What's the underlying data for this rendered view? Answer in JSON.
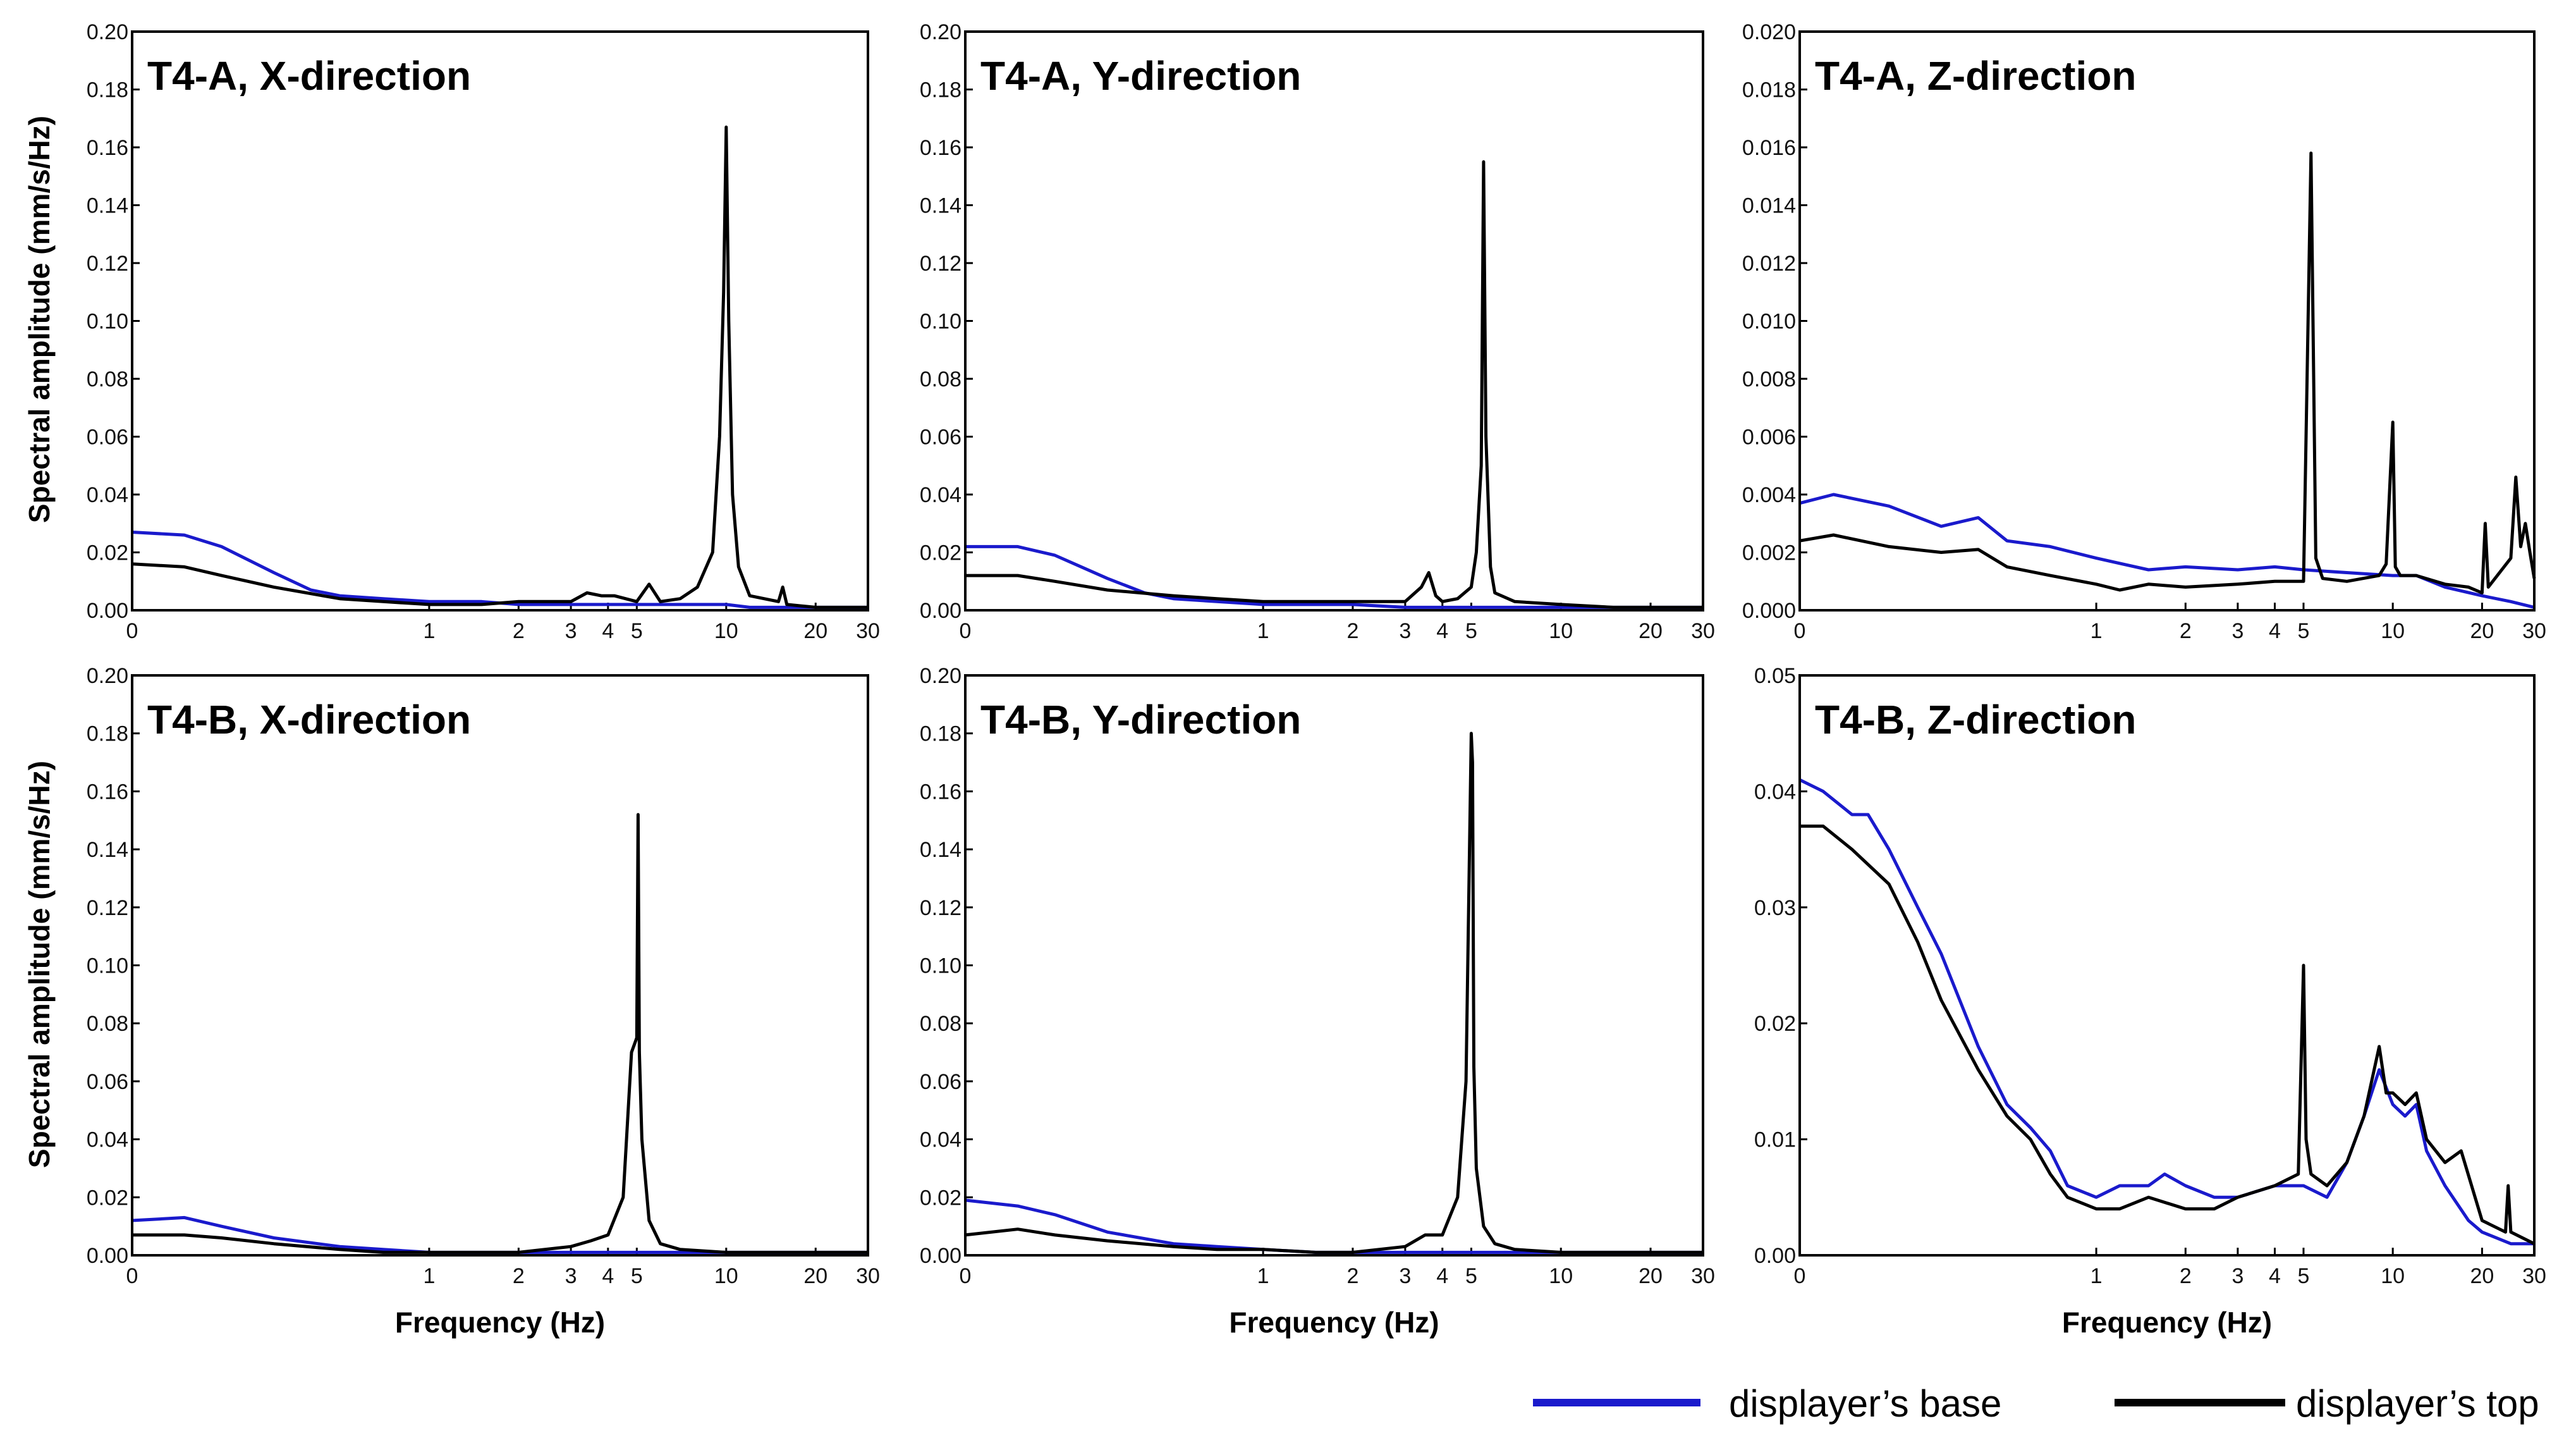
{
  "figure": {
    "ylabel": "Spectral amplitude (mm/s/Hz)",
    "xlabel": "Frequency (Hz)",
    "legend": [
      {
        "label": "displayer’s base",
        "color": "#1a1acc"
      },
      {
        "label": "displayer’s top",
        "color": "#000000"
      }
    ],
    "colors": {
      "base": "#1a1acc",
      "top": "#000000",
      "axis": "#000000"
    }
  },
  "chart_data": [
    {
      "type": "line",
      "title": "T4-A, X-direction",
      "xlabel": "",
      "ylabel": "Spectral amplitude (mm/s/Hz)",
      "x_scale": "log",
      "xlim": [
        0.1,
        30
      ],
      "x_ticks": [
        {
          "v": 0.1,
          "l": "0"
        },
        {
          "v": 1,
          "l": "1"
        },
        {
          "v": 2,
          "l": "2"
        },
        {
          "v": 3,
          "l": "3"
        },
        {
          "v": 4,
          "l": "4"
        },
        {
          "v": 5,
          "l": "5"
        },
        {
          "v": 10,
          "l": "10"
        },
        {
          "v": 20,
          "l": "20"
        },
        {
          "v": 30,
          "l": "30"
        }
      ],
      "ylim": [
        0,
        0.2
      ],
      "y_ticks": [
        "0.00",
        "0.02",
        "0.04",
        "0.06",
        "0.08",
        "0.10",
        "0.12",
        "0.14",
        "0.16",
        "0.18",
        "0.20"
      ],
      "series": [
        {
          "name": "displayer’s base",
          "color": "#1a1acc",
          "x": [
            0.1,
            0.15,
            0.2,
            0.3,
            0.4,
            0.5,
            0.7,
            1,
            1.5,
            2,
            3,
            4,
            5,
            7,
            9,
            10,
            12,
            15,
            20,
            30
          ],
          "y": [
            0.027,
            0.026,
            0.022,
            0.013,
            0.007,
            0.005,
            0.004,
            0.003,
            0.003,
            0.002,
            0.002,
            0.002,
            0.002,
            0.002,
            0.002,
            0.002,
            0.001,
            0.001,
            0.001,
            0.001
          ]
        },
        {
          "name": "displayer’s top",
          "color": "#000000",
          "x": [
            0.1,
            0.15,
            0.2,
            0.3,
            0.5,
            0.7,
            1,
            1.5,
            2,
            3,
            3.4,
            3.8,
            4.2,
            5,
            5.5,
            6,
            7,
            8,
            9,
            9.5,
            9.8,
            10,
            10.2,
            10.5,
            11,
            12,
            15,
            15.5,
            16,
            20,
            30
          ],
          "y": [
            0.016,
            0.015,
            0.012,
            0.008,
            0.004,
            0.003,
            0.002,
            0.002,
            0.003,
            0.003,
            0.006,
            0.005,
            0.005,
            0.003,
            0.009,
            0.003,
            0.004,
            0.008,
            0.02,
            0.06,
            0.11,
            0.167,
            0.1,
            0.04,
            0.015,
            0.005,
            0.003,
            0.008,
            0.002,
            0.001,
            0.001
          ]
        }
      ]
    },
    {
      "type": "line",
      "title": "T4-A, Y-direction",
      "xlabel": "",
      "ylabel": "",
      "x_scale": "log",
      "xlim": [
        0.1,
        30
      ],
      "x_ticks": [
        {
          "v": 0.1,
          "l": "0"
        },
        {
          "v": 1,
          "l": "1"
        },
        {
          "v": 2,
          "l": "2"
        },
        {
          "v": 3,
          "l": "3"
        },
        {
          "v": 4,
          "l": "4"
        },
        {
          "v": 5,
          "l": "5"
        },
        {
          "v": 10,
          "l": "10"
        },
        {
          "v": 20,
          "l": "20"
        },
        {
          "v": 30,
          "l": "30"
        }
      ],
      "ylim": [
        0,
        0.2
      ],
      "y_ticks": [
        "0.00",
        "0.02",
        "0.04",
        "0.06",
        "0.08",
        "0.10",
        "0.12",
        "0.14",
        "0.16",
        "0.18",
        "0.20"
      ],
      "series": [
        {
          "name": "displayer’s base",
          "color": "#1a1acc",
          "x": [
            0.1,
            0.15,
            0.2,
            0.3,
            0.4,
            0.5,
            0.7,
            1,
            1.5,
            2,
            3,
            4,
            5,
            7,
            10,
            15,
            20,
            30
          ],
          "y": [
            0.022,
            0.022,
            0.019,
            0.011,
            0.006,
            0.004,
            0.003,
            0.002,
            0.002,
            0.002,
            0.001,
            0.001,
            0.001,
            0.001,
            0.001,
            0.001,
            0.001,
            0.001
          ]
        },
        {
          "name": "displayer’s top",
          "color": "#000000",
          "x": [
            0.1,
            0.15,
            0.2,
            0.3,
            0.5,
            0.7,
            1,
            1.5,
            2,
            3,
            3.4,
            3.6,
            3.8,
            4,
            4.5,
            5,
            5.2,
            5.4,
            5.5,
            5.6,
            5.8,
            6,
            7,
            10,
            15,
            20,
            30
          ],
          "y": [
            0.012,
            0.012,
            0.01,
            0.007,
            0.005,
            0.004,
            0.003,
            0.003,
            0.003,
            0.003,
            0.008,
            0.013,
            0.005,
            0.003,
            0.004,
            0.008,
            0.02,
            0.05,
            0.155,
            0.06,
            0.015,
            0.006,
            0.003,
            0.002,
            0.001,
            0.001,
            0.001
          ]
        }
      ]
    },
    {
      "type": "line",
      "title": "T4-A, Z-direction",
      "xlabel": "",
      "ylabel": "",
      "x_scale": "log",
      "xlim": [
        0.1,
        30
      ],
      "x_ticks": [
        {
          "v": 0.1,
          "l": "0"
        },
        {
          "v": 1,
          "l": "1"
        },
        {
          "v": 2,
          "l": "2"
        },
        {
          "v": 3,
          "l": "3"
        },
        {
          "v": 4,
          "l": "4"
        },
        {
          "v": 5,
          "l": "5"
        },
        {
          "v": 10,
          "l": "10"
        },
        {
          "v": 20,
          "l": "20"
        },
        {
          "v": 30,
          "l": "30"
        }
      ],
      "ylim": [
        0,
        0.02
      ],
      "y_ticks": [
        "0.000",
        "0.002",
        "0.004",
        "0.006",
        "0.008",
        "0.010",
        "0.012",
        "0.014",
        "0.016",
        "0.018",
        "0.020"
      ],
      "series": [
        {
          "name": "displayer’s base",
          "color": "#1a1acc",
          "x": [
            0.1,
            0.13,
            0.2,
            0.3,
            0.4,
            0.5,
            0.7,
            1,
            1.5,
            2,
            3,
            4,
            5,
            7,
            10,
            12,
            15,
            20,
            25,
            30
          ],
          "y": [
            0.0037,
            0.004,
            0.0036,
            0.0029,
            0.0032,
            0.0024,
            0.0022,
            0.0018,
            0.0014,
            0.0015,
            0.0014,
            0.0015,
            0.0014,
            0.0013,
            0.0012,
            0.0012,
            0.0008,
            0.0005,
            0.0003,
            0.0001
          ]
        },
        {
          "name": "displayer’s top",
          "color": "#000000",
          "x": [
            0.1,
            0.13,
            0.2,
            0.3,
            0.4,
            0.5,
            0.7,
            1,
            1.2,
            1.5,
            2,
            3,
            4,
            5,
            5.3,
            5.5,
            5.8,
            7,
            9,
            9.5,
            10,
            10.2,
            10.6,
            12,
            15,
            18,
            20,
            20.5,
            21,
            25,
            26,
            27,
            28,
            29,
            30
          ],
          "y": [
            0.0024,
            0.0026,
            0.0022,
            0.002,
            0.0021,
            0.0015,
            0.0012,
            0.0009,
            0.0007,
            0.0009,
            0.0008,
            0.0009,
            0.001,
            0.001,
            0.0158,
            0.0018,
            0.0011,
            0.001,
            0.0012,
            0.0016,
            0.0065,
            0.0015,
            0.0012,
            0.0012,
            0.0009,
            0.0008,
            0.0006,
            0.003,
            0.0008,
            0.0018,
            0.0046,
            0.0022,
            0.003,
            0.002,
            0.0011
          ]
        }
      ]
    },
    {
      "type": "line",
      "title": "T4-B, X-direction",
      "xlabel": "Frequency (Hz)",
      "ylabel": "Spectral amplitude (mm/s/Hz)",
      "x_scale": "log",
      "xlim": [
        0.1,
        30
      ],
      "x_ticks": [
        {
          "v": 0.1,
          "l": "0"
        },
        {
          "v": 1,
          "l": "1"
        },
        {
          "v": 2,
          "l": "2"
        },
        {
          "v": 3,
          "l": "3"
        },
        {
          "v": 4,
          "l": "4"
        },
        {
          "v": 5,
          "l": "5"
        },
        {
          "v": 10,
          "l": "10"
        },
        {
          "v": 20,
          "l": "20"
        },
        {
          "v": 30,
          "l": "30"
        }
      ],
      "ylim": [
        0,
        0.2
      ],
      "y_ticks": [
        "0.00",
        "0.02",
        "0.04",
        "0.06",
        "0.08",
        "0.10",
        "0.12",
        "0.14",
        "0.16",
        "0.18",
        "0.20"
      ],
      "series": [
        {
          "name": "displayer’s base",
          "color": "#1a1acc",
          "x": [
            0.1,
            0.15,
            0.2,
            0.3,
            0.5,
            0.7,
            1,
            1.5,
            2,
            3,
            5,
            10,
            20,
            30
          ],
          "y": [
            0.012,
            0.013,
            0.01,
            0.006,
            0.003,
            0.002,
            0.001,
            0.001,
            0.001,
            0.001,
            0.001,
            0.001,
            0.001,
            0.001
          ]
        },
        {
          "name": "displayer’s top",
          "color": "#000000",
          "x": [
            0.1,
            0.15,
            0.2,
            0.3,
            0.5,
            0.7,
            1,
            1.5,
            2,
            3,
            3.5,
            4,
            4.5,
            4.8,
            5,
            5.05,
            5.1,
            5.2,
            5.5,
            6,
            7,
            10,
            20,
            30
          ],
          "y": [
            0.007,
            0.007,
            0.006,
            0.004,
            0.002,
            0.001,
            0.001,
            0.001,
            0.001,
            0.003,
            0.005,
            0.007,
            0.02,
            0.07,
            0.075,
            0.152,
            0.07,
            0.04,
            0.012,
            0.004,
            0.002,
            0.001,
            0.001,
            0.001
          ]
        }
      ]
    },
    {
      "type": "line",
      "title": "T4-B, Y-direction",
      "xlabel": "Frequency (Hz)",
      "ylabel": "",
      "x_scale": "log",
      "xlim": [
        0.1,
        30
      ],
      "x_ticks": [
        {
          "v": 0.1,
          "l": "0"
        },
        {
          "v": 1,
          "l": "1"
        },
        {
          "v": 2,
          "l": "2"
        },
        {
          "v": 3,
          "l": "3"
        },
        {
          "v": 4,
          "l": "4"
        },
        {
          "v": 5,
          "l": "5"
        },
        {
          "v": 10,
          "l": "10"
        },
        {
          "v": 20,
          "l": "20"
        },
        {
          "v": 30,
          "l": "30"
        }
      ],
      "ylim": [
        0,
        0.2
      ],
      "y_ticks": [
        "0.00",
        "0.02",
        "0.04",
        "0.06",
        "0.08",
        "0.10",
        "0.12",
        "0.14",
        "0.16",
        "0.18",
        "0.20"
      ],
      "series": [
        {
          "name": "displayer’s base",
          "color": "#1a1acc",
          "x": [
            0.1,
            0.15,
            0.2,
            0.3,
            0.5,
            0.7,
            1,
            1.5,
            2,
            3,
            5,
            10,
            20,
            30
          ],
          "y": [
            0.019,
            0.017,
            0.014,
            0.008,
            0.004,
            0.003,
            0.002,
            0.001,
            0.001,
            0.001,
            0.001,
            0.001,
            0.001,
            0.001
          ]
        },
        {
          "name": "displayer’s top",
          "color": "#000000",
          "x": [
            0.1,
            0.15,
            0.2,
            0.3,
            0.5,
            0.7,
            1,
            1.5,
            2,
            3,
            3.5,
            4,
            4.5,
            4.8,
            5,
            5.05,
            5.1,
            5.2,
            5.5,
            6,
            7,
            10,
            20,
            30
          ],
          "y": [
            0.007,
            0.009,
            0.007,
            0.005,
            0.003,
            0.002,
            0.002,
            0.001,
            0.001,
            0.003,
            0.007,
            0.007,
            0.02,
            0.06,
            0.18,
            0.17,
            0.065,
            0.03,
            0.01,
            0.004,
            0.002,
            0.001,
            0.001,
            0.001
          ]
        }
      ]
    },
    {
      "type": "line",
      "title": "T4-B, Z-direction",
      "xlabel": "Frequency (Hz)",
      "ylabel": "",
      "x_scale": "log",
      "xlim": [
        0.1,
        30
      ],
      "x_ticks": [
        {
          "v": 0.1,
          "l": "0"
        },
        {
          "v": 1,
          "l": "1"
        },
        {
          "v": 2,
          "l": "2"
        },
        {
          "v": 3,
          "l": "3"
        },
        {
          "v": 4,
          "l": "4"
        },
        {
          "v": 5,
          "l": "5"
        },
        {
          "v": 10,
          "l": "10"
        },
        {
          "v": 20,
          "l": "20"
        },
        {
          "v": 30,
          "l": "30"
        }
      ],
      "ylim": [
        0,
        0.05
      ],
      "y_ticks": [
        "0.00",
        "0.01",
        "0.02",
        "0.03",
        "0.04",
        "0.05"
      ],
      "series": [
        {
          "name": "displayer’s base",
          "color": "#1a1acc",
          "x": [
            0.1,
            0.12,
            0.15,
            0.17,
            0.2,
            0.25,
            0.3,
            0.4,
            0.5,
            0.6,
            0.7,
            0.8,
            1,
            1.2,
            1.5,
            1.7,
            2,
            2.5,
            3,
            4,
            5,
            6,
            7,
            8,
            9,
            10,
            11,
            12,
            13,
            15,
            18,
            20,
            25,
            30
          ],
          "y": [
            0.041,
            0.04,
            0.038,
            0.038,
            0.035,
            0.03,
            0.026,
            0.018,
            0.013,
            0.011,
            0.009,
            0.006,
            0.005,
            0.006,
            0.006,
            0.007,
            0.006,
            0.005,
            0.005,
            0.006,
            0.006,
            0.005,
            0.008,
            0.012,
            0.016,
            0.013,
            0.012,
            0.013,
            0.009,
            0.006,
            0.003,
            0.002,
            0.001,
            0.001
          ]
        },
        {
          "name": "displayer’s top",
          "color": "#000000",
          "x": [
            0.1,
            0.12,
            0.15,
            0.2,
            0.25,
            0.3,
            0.4,
            0.5,
            0.6,
            0.7,
            0.8,
            1,
            1.2,
            1.5,
            2,
            2.5,
            3,
            4,
            4.8,
            5,
            5.1,
            5.3,
            6,
            7,
            8,
            9,
            9.5,
            10,
            11,
            12,
            13,
            15,
            17,
            20,
            24,
            24.5,
            25,
            30
          ],
          "y": [
            0.037,
            0.037,
            0.035,
            0.032,
            0.027,
            0.022,
            0.016,
            0.012,
            0.01,
            0.007,
            0.005,
            0.004,
            0.004,
            0.005,
            0.004,
            0.004,
            0.005,
            0.006,
            0.007,
            0.025,
            0.01,
            0.007,
            0.006,
            0.008,
            0.012,
            0.018,
            0.014,
            0.014,
            0.013,
            0.014,
            0.01,
            0.008,
            0.009,
            0.003,
            0.002,
            0.006,
            0.002,
            0.001
          ]
        }
      ]
    }
  ]
}
